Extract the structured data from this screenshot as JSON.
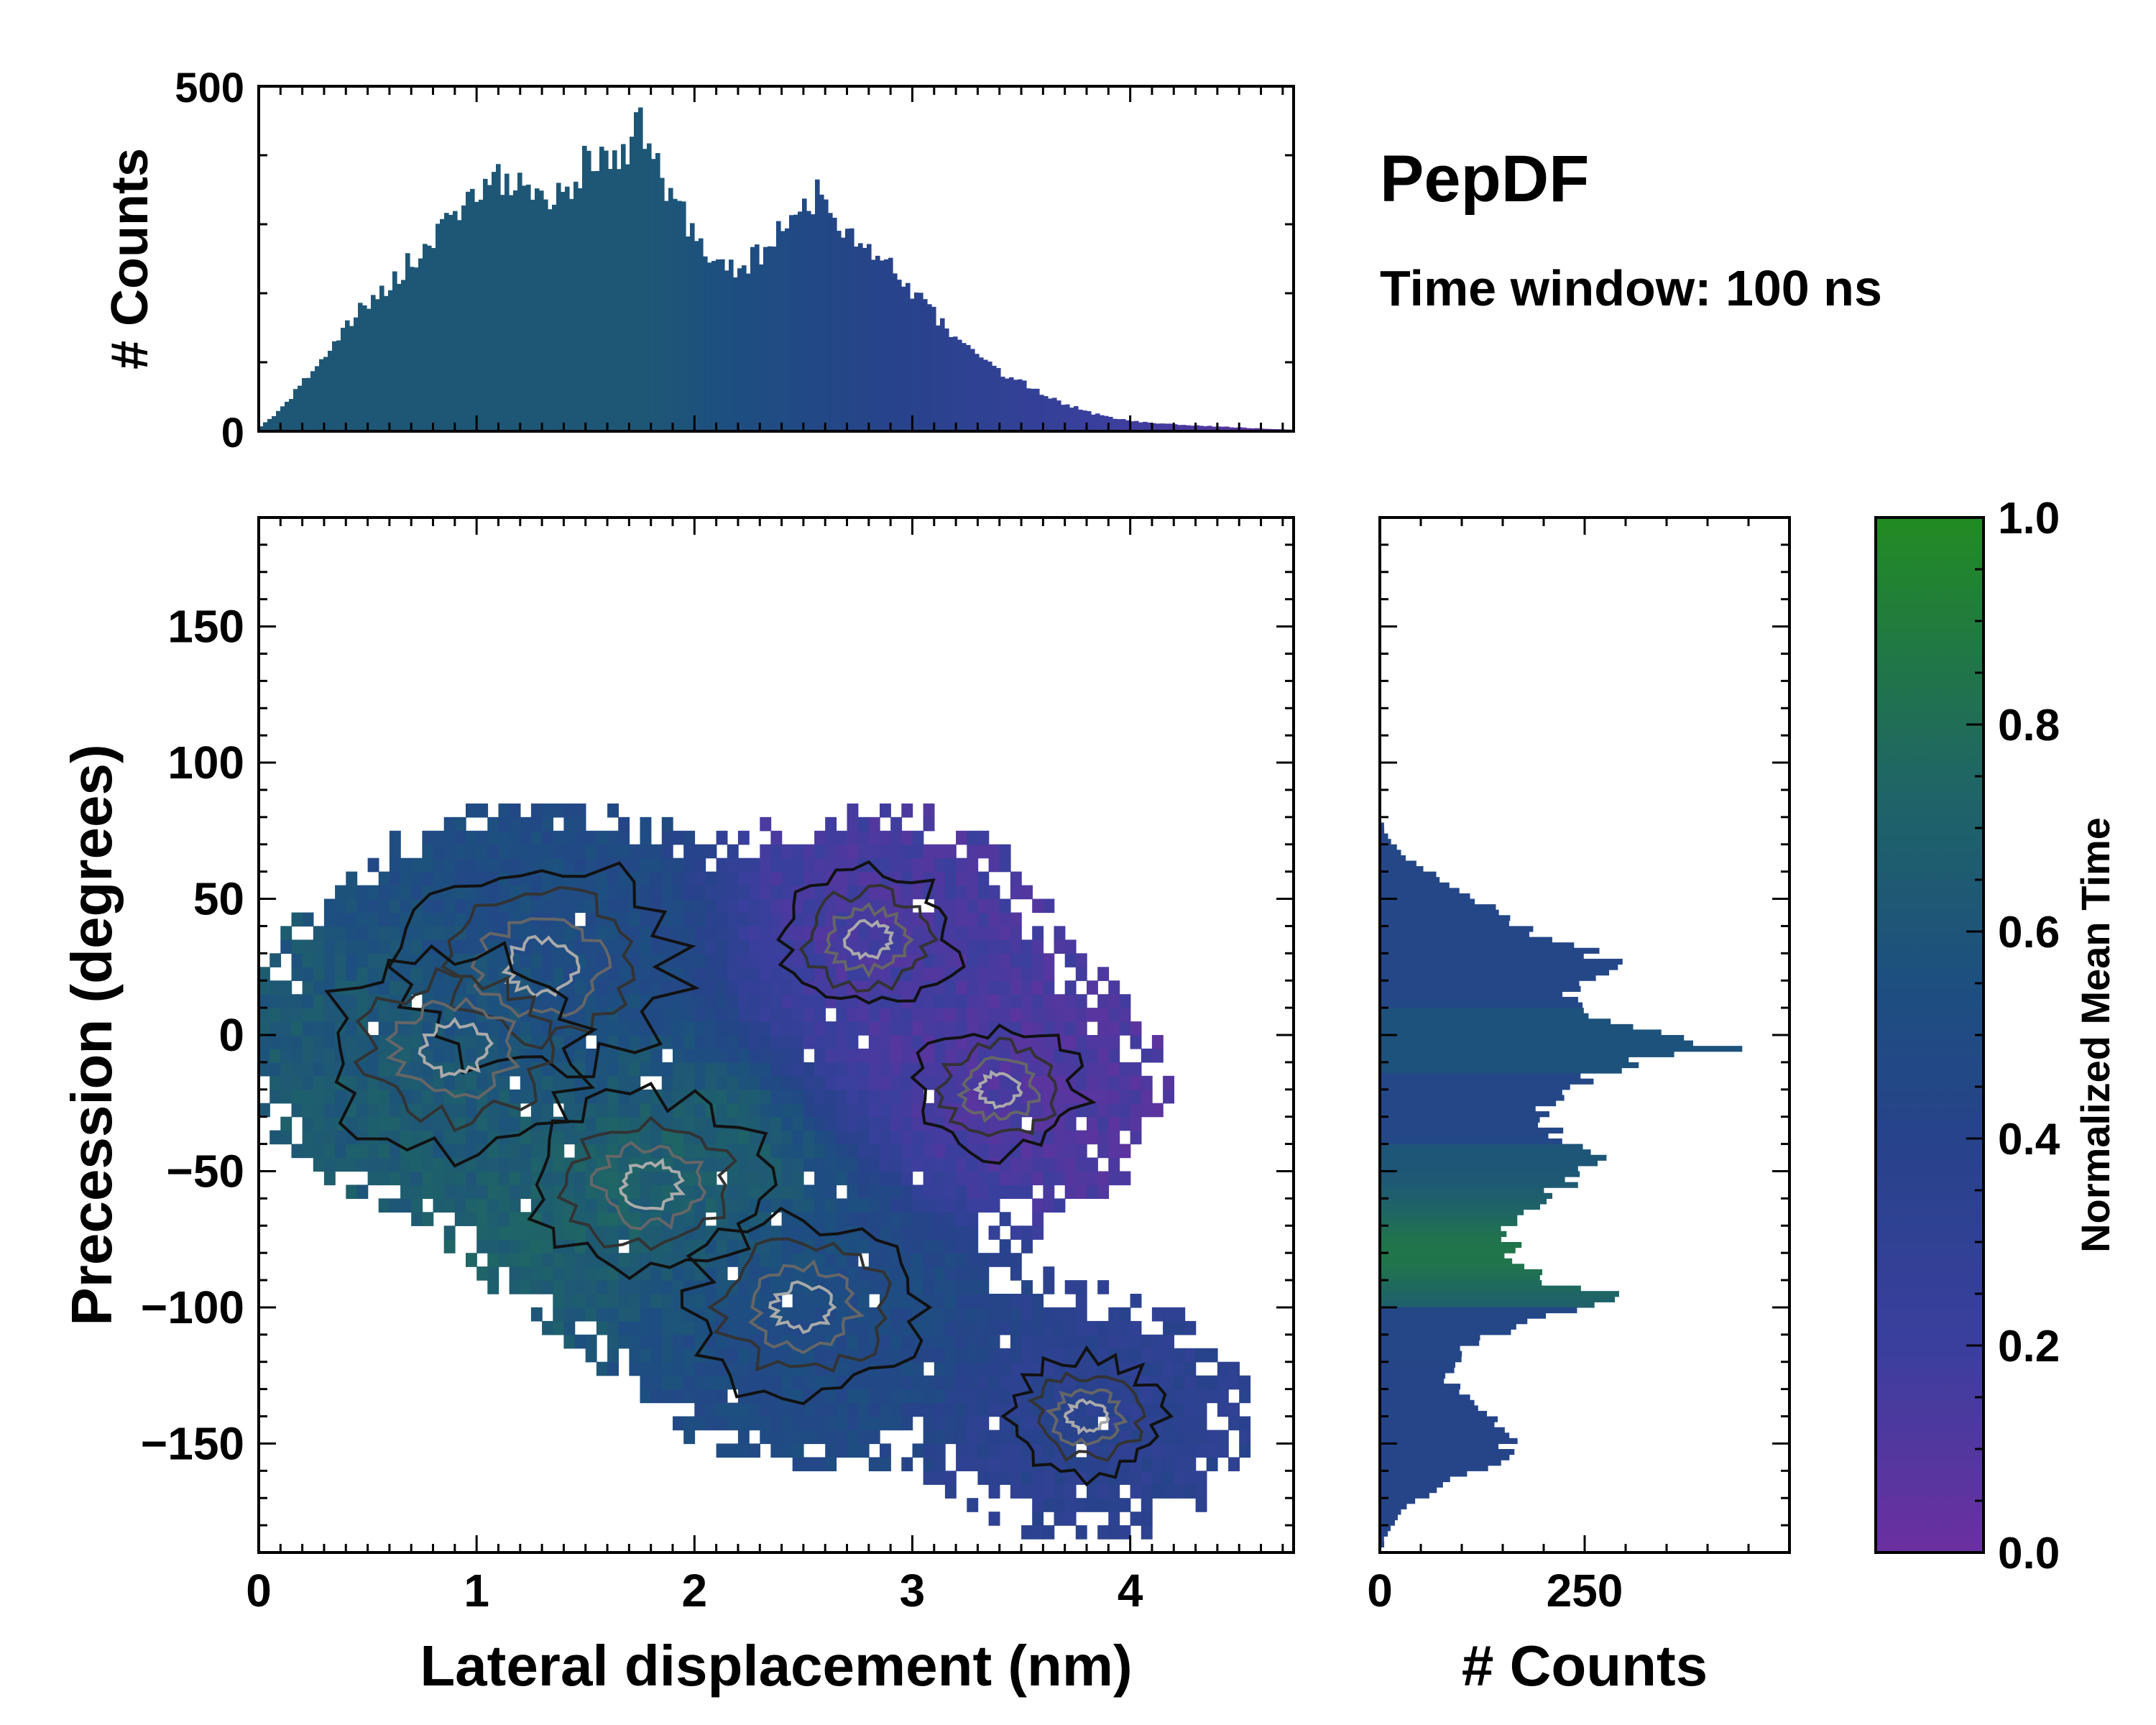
{
  "figure": {
    "title": "PepDF",
    "subtitle": "Time window: 100 ns"
  },
  "chart_data": [
    {
      "type": "bar",
      "panel": "top-marginal-histogram",
      "xlabel": "",
      "ylabel": "# Counts",
      "xlim": [
        0,
        4.75
      ],
      "ylim": [
        0,
        500
      ],
      "yticks": [
        "0",
        "500"
      ],
      "profile_x": [
        0,
        0.1,
        0.2,
        0.3,
        0.4,
        0.5,
        0.6,
        0.7,
        0.8,
        0.9,
        1.0,
        1.1,
        1.2,
        1.3,
        1.4,
        1.5,
        1.6,
        1.7,
        1.75,
        1.8,
        1.9,
        2.0,
        2.1,
        2.2,
        2.3,
        2.4,
        2.5,
        2.55,
        2.6,
        2.7,
        2.8,
        2.9,
        3.0,
        3.1,
        3.2,
        3.3,
        3.4,
        3.5,
        3.6,
        3.7,
        3.8,
        3.9,
        4.0,
        4.2,
        4.4,
        4.6,
        4.75
      ],
      "profile_counts": [
        5,
        30,
        70,
        110,
        150,
        185,
        215,
        245,
        275,
        315,
        350,
        365,
        355,
        330,
        355,
        385,
        400,
        415,
        440,
        390,
        340,
        280,
        245,
        235,
        255,
        290,
        320,
        345,
        335,
        290,
        260,
        235,
        205,
        170,
        135,
        110,
        85,
        70,
        55,
        40,
        28,
        20,
        15,
        10,
        7,
        4,
        2
      ]
    },
    {
      "type": "heatmap",
      "panel": "main-2d-histogram",
      "xlabel": "Lateral displacement (nm)",
      "ylabel": "Precession (degrees)",
      "xlim": [
        0,
        4.75
      ],
      "ylim": [
        -190,
        190
      ],
      "xticks": [
        "0",
        "1",
        "2",
        "3",
        "4"
      ],
      "yticks": [
        "150",
        "100",
        "50",
        "0",
        "−50",
        "−100",
        "−150"
      ],
      "colorbar_label": "Normalized Mean Time",
      "colorbar_ticks": [
        "1.0",
        "0.8",
        "0.6",
        "0.4",
        "0.2",
        "0.0"
      ],
      "colormap": [
        "#6b2fa0",
        "#3a3f9e",
        "#27438a",
        "#1d4f80",
        "#1f6664",
        "#228b22"
      ],
      "clusters": [
        {
          "x": 1.3,
          "y": 25,
          "count_peak": 1.0,
          "time": 0.5
        },
        {
          "x": 0.9,
          "y": -5,
          "count_peak": 0.9,
          "time": 0.65
        },
        {
          "x": 1.8,
          "y": -55,
          "count_peak": 0.7,
          "time": 0.7
        },
        {
          "x": 2.5,
          "y": -100,
          "count_peak": 0.7,
          "time": 0.5
        },
        {
          "x": 2.8,
          "y": 35,
          "count_peak": 0.4,
          "time": 0.15
        },
        {
          "x": 3.4,
          "y": -20,
          "count_peak": 0.35,
          "time": 0.12
        },
        {
          "x": 3.8,
          "y": -140,
          "count_peak": 0.3,
          "time": 0.35
        }
      ]
    },
    {
      "type": "bar",
      "panel": "right-marginal-histogram",
      "orientation": "horizontal",
      "xlabel": "# Counts",
      "ylabel": "",
      "xlim": [
        0,
        500
      ],
      "ylim": [
        -190,
        190
      ],
      "xticks": [
        "0",
        "250"
      ],
      "profile_y": [
        75,
        65,
        55,
        45,
        35,
        30,
        25,
        15,
        5,
        -5,
        -10,
        -20,
        -30,
        -40,
        -45,
        -50,
        -60,
        -70,
        -80,
        -90,
        -95,
        -100,
        -105,
        -115,
        -125,
        -135,
        -145,
        -155,
        -165,
        -175,
        -185
      ],
      "profile_counts": [
        5,
        30,
        90,
        150,
        200,
        260,
        300,
        230,
        270,
        410,
        300,
        220,
        200,
        220,
        270,
        250,
        200,
        160,
        160,
        200,
        270,
        280,
        180,
        100,
        80,
        110,
        160,
        150,
        80,
        25,
        5
      ]
    }
  ]
}
